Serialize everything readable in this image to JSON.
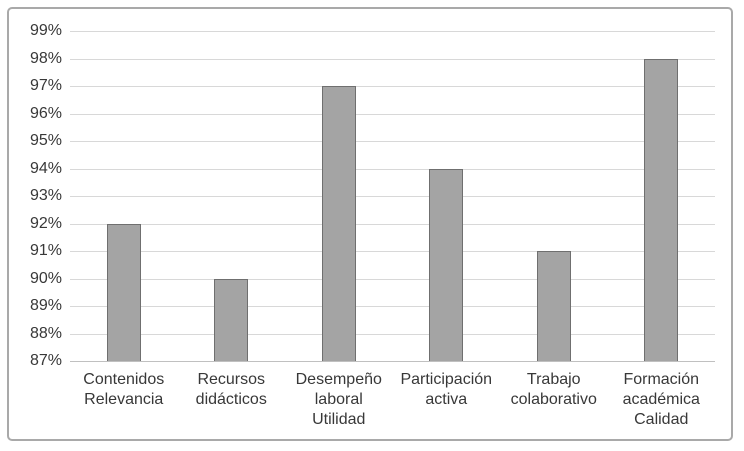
{
  "chart_data": {
    "type": "bar",
    "title": "",
    "xlabel": "",
    "ylabel": "",
    "categories": [
      "Contenidos\nRelevancia",
      "Recursos\ndidácticos",
      "Desempeño\nlaboral\nUtilidad",
      "Participación\nactiva",
      "Trabajo\ncolaborativo",
      "Formación\nacadémica\nCalidad"
    ],
    "values": [
      92,
      90,
      97,
      94,
      91,
      98
    ],
    "ylim": [
      87,
      99
    ],
    "y_tick_step": 1,
    "y_tick_labels": [
      "99%",
      "98%",
      "97%",
      "96%",
      "95%",
      "94%",
      "93%",
      "92%",
      "91%",
      "90%",
      "89%",
      "88%",
      "87%"
    ],
    "grid": true,
    "legend": "none",
    "colors": {
      "bar_fill": "#a4a4a4",
      "bar_border": "#6f6f6f",
      "gridline": "#d8d8d8",
      "axis_line": "#c0c0c0",
      "text": "#383838",
      "frame_border": "#a9a9a9",
      "background": "#ffffff"
    }
  }
}
